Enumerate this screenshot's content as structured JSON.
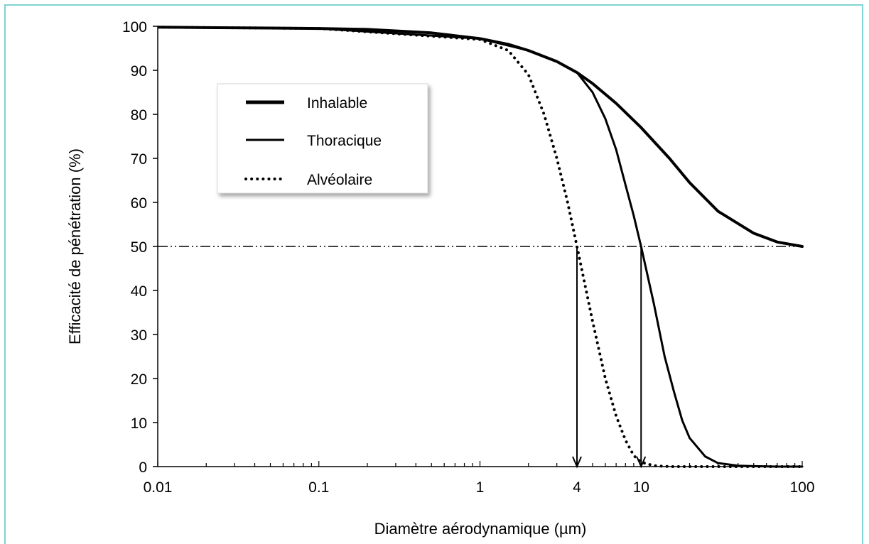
{
  "chart_data": {
    "type": "line",
    "title": "",
    "xlabel": "Diamètre aérodynamique (µm)",
    "ylabel": "Efficacité de pénétration (%)",
    "x_scale": "log",
    "xlim": [
      0.01,
      100
    ],
    "ylim": [
      0,
      100
    ],
    "x_ticks": [
      {
        "value": 0.01,
        "label": "0.01"
      },
      {
        "value": 0.1,
        "label": "0.1"
      },
      {
        "value": 1,
        "label": "1"
      },
      {
        "value": 4,
        "label": "4"
      },
      {
        "value": 10,
        "label": "10"
      },
      {
        "value": 100,
        "label": "100"
      }
    ],
    "y_ticks": [
      0,
      10,
      20,
      30,
      40,
      50,
      60,
      70,
      80,
      90,
      100
    ],
    "grid": false,
    "legend_position": "upper-left",
    "series": [
      {
        "name": "Inhalable",
        "style": "solid-thick",
        "x": [
          0.01,
          0.02,
          0.05,
          0.1,
          0.2,
          0.5,
          1,
          1.5,
          2,
          3,
          4,
          5,
          7,
          10,
          15,
          20,
          30,
          50,
          70,
          100
        ],
        "y": [
          99.8,
          99.7,
          99.6,
          99.5,
          99.3,
          98.5,
          97.2,
          95.9,
          94.5,
          92,
          89.5,
          87,
          82.5,
          77,
          70,
          64.5,
          58,
          53,
          51,
          50
        ]
      },
      {
        "name": "Thoracique",
        "style": "solid",
        "x": [
          0.01,
          0.1,
          1,
          2,
          3,
          4,
          5,
          6,
          7,
          8,
          9,
          10,
          12,
          14,
          16,
          18,
          20,
          25,
          30,
          40,
          50,
          70,
          100
        ],
        "y": [
          99.8,
          99.5,
          97.2,
          94.5,
          92,
          89.5,
          85,
          79,
          72,
          64,
          57,
          50,
          37,
          25,
          17,
          10.5,
          6.5,
          2.3,
          0.8,
          0.2,
          0.1,
          0,
          0
        ]
      },
      {
        "name": "Alvéolaire",
        "style": "dotted",
        "x": [
          0.01,
          0.1,
          1,
          1.5,
          2,
          2.5,
          3,
          3.5,
          4,
          5,
          6,
          7,
          8,
          9,
          10,
          12,
          15,
          20,
          30,
          50,
          100
        ],
        "y": [
          99.8,
          99.5,
          97,
          94.5,
          89,
          80,
          70,
          60,
          50,
          33,
          20,
          11.5,
          6,
          2.5,
          1,
          0.2,
          0,
          0,
          0,
          0,
          0
        ]
      }
    ],
    "reference_line": {
      "y": 50,
      "style": "dash-dot-dot"
    },
    "annotations": [
      {
        "type": "arrow",
        "x": 4,
        "from_y": 50,
        "to_y": 0
      },
      {
        "type": "arrow",
        "x": 10,
        "from_y": 50,
        "to_y": 0
      }
    ]
  }
}
